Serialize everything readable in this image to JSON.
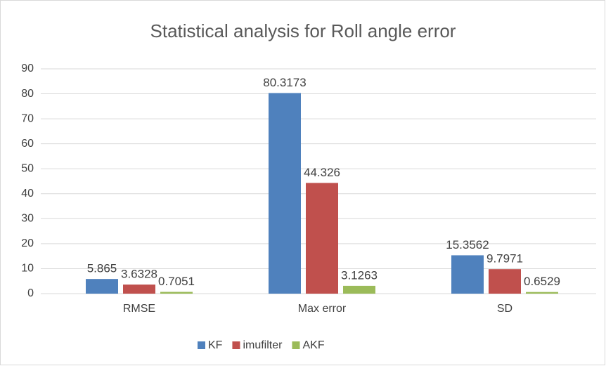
{
  "chart_data": {
    "type": "bar",
    "title": "Statistical analysis for Roll angle error",
    "categories": [
      "RMSE",
      "Max error",
      "SD"
    ],
    "series": [
      {
        "name": "KF",
        "color": "#4f81bd",
        "values": [
          5.865,
          80.3173,
          15.3562
        ]
      },
      {
        "name": "imufilter",
        "color": "#c0504d",
        "values": [
          3.6328,
          44.326,
          9.7971
        ]
      },
      {
        "name": "AKF",
        "color": "#9bbb59",
        "values": [
          0.7051,
          3.1263,
          0.6529
        ]
      }
    ],
    "ylim": [
      0,
      90
    ],
    "yticks": [
      0,
      10,
      20,
      30,
      40,
      50,
      60,
      70,
      80,
      90
    ],
    "grid": true,
    "legend": "bottom"
  }
}
